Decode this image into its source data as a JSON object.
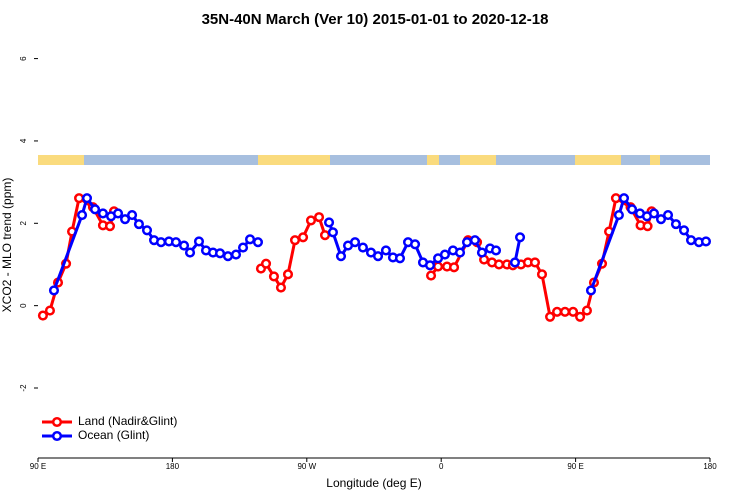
{
  "chart_data": {
    "type": "line",
    "title": "35N-40N March (Ver 10)   2015-01-01 to 2020-12-18",
    "x_label": "Longitude (deg E)",
    "y_label": "XCO2 - MLO trend (ppm)",
    "xlim": [
      90,
      540
    ],
    "ylim": [
      -3.7,
      6.5
    ],
    "xticks": [
      {
        "value": 90,
        "label": "90 E"
      },
      180,
      {
        "value": 270,
        "label": "90 W"
      },
      {
        "value": 360,
        "label": "0"
      },
      {
        "value": 450,
        "label": "90 E"
      },
      {
        "value": 540,
        "label": "180"
      }
    ],
    "yticks": [
      -2,
      0,
      2,
      4,
      6
    ],
    "legend": "bottom-left",
    "series": [
      {
        "name": "Land (Nadir&Glint)",
        "color": "#ff0000",
        "x": [
          93.3,
          98,
          103.4,
          108.8,
          112.8,
          117.5,
          126.8,
          133.5,
          138.2,
          140.9,
          null,
          239.3,
          242.7,
          248,
          252.7,
          257.4,
          262.1,
          267.5,
          272.8,
          278.2,
          282.2,
          null,
          353.2,
          357.9,
          363.9,
          368.6,
          378,
          384,
          388.7,
          394,
          398.7,
          404,
          408,
          413.4,
          418.1,
          422.8,
          427.5,
          432.9,
          437.6,
          442.9,
          448.3,
          453,
          457.6,
          462.3,
          467.7,
          472.4,
          477,
          486.8,
          493.5,
          498.2,
          500.9
        ],
        "values": [
          -0.24,
          -0.12,
          0.56,
          1.02,
          1.8,
          2.61,
          2.39,
          1.95,
          1.93,
          2.29,
          null,
          0.9,
          1.02,
          0.71,
          0.44,
          0.76,
          1.59,
          1.66,
          2.07,
          2.15,
          1.71,
          null,
          0.73,
          0.95,
          0.95,
          0.93,
          1.59,
          1.54,
          1.12,
          1.05,
          1.0,
          1.0,
          0.98,
          1.0,
          1.05,
          1.05,
          0.76,
          -0.27,
          -0.15,
          -0.15,
          -0.15,
          -0.27,
          -0.12,
          0.56,
          1.02,
          1.8,
          2.61,
          2.39,
          1.95,
          1.93,
          2.29
        ]
      },
      {
        "name": "Ocean (Glint)",
        "color": "#0000ff",
        "x": [
          100.7,
          119.5,
          122.8,
          128.2,
          133.5,
          138.9,
          143.6,
          148.3,
          153,
          157.6,
          163,
          167.7,
          172.4,
          177.7,
          182.4,
          187.8,
          191.8,
          197.8,
          202.5,
          207.2,
          211.9,
          217.2,
          222.6,
          227.3,
          232,
          237.3,
          null,
          284.9,
          287.5,
          292.9,
          297.6,
          302.3,
          307.6,
          313,
          317.7,
          323,
          327.7,
          332.4,
          337.8,
          342.5,
          347.8,
          352.5,
          357.9,
          362.5,
          367.9,
          372.6,
          377.3,
          382.6,
          387.3,
          392.7,
          396.7,
          null,
          409.4,
          412.8,
          null,
          460.3,
          479,
          482.4,
          487.8,
          493.1,
          497.8,
          502.5,
          507.2,
          511.9,
          517.2,
          522.6,
          527.3,
          532.6,
          537.3
        ],
        "values": [
          0.37,
          2.2,
          2.61,
          2.34,
          2.24,
          2.17,
          2.24,
          2.1,
          2.2,
          1.98,
          1.83,
          1.59,
          1.54,
          1.56,
          1.54,
          1.46,
          1.29,
          1.56,
          1.34,
          1.29,
          1.27,
          1.2,
          1.24,
          1.41,
          1.61,
          1.54,
          null,
          2.02,
          1.78,
          1.2,
          1.46,
          1.54,
          1.41,
          1.29,
          1.2,
          1.34,
          1.17,
          1.15,
          1.54,
          1.49,
          1.05,
          0.98,
          1.15,
          1.24,
          1.34,
          1.29,
          1.54,
          1.59,
          1.29,
          1.39,
          1.34,
          null,
          1.05,
          1.66,
          null,
          0.37,
          2.2,
          2.61,
          2.34,
          2.24,
          2.17,
          2.24,
          2.1,
          2.2,
          1.98,
          1.83,
          1.59,
          1.54,
          1.56
        ]
      }
    ]
  }
}
